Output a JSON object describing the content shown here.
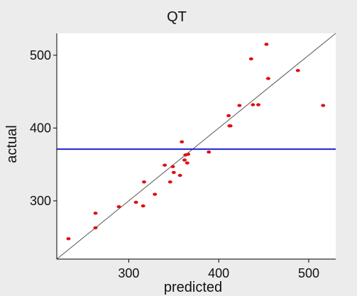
{
  "chart_data": {
    "type": "scatter",
    "title": "QT",
    "xlabel": "predicted",
    "ylabel": "actual",
    "xlim": [
      220,
      530
    ],
    "ylim": [
      220,
      530
    ],
    "xticks": [
      300,
      400,
      500
    ],
    "yticks": [
      300,
      400,
      500
    ],
    "grid": false,
    "reference_lines": [
      {
        "kind": "identity",
        "equation": "y = x",
        "color": "#555555"
      },
      {
        "kind": "horizontal",
        "y": 371,
        "color": "#1f1fd0"
      }
    ],
    "series": [
      {
        "color": "#e01010",
        "points": [
          [
            233,
            248
          ],
          [
            263,
            283
          ],
          [
            263,
            263
          ],
          [
            289,
            292
          ],
          [
            308,
            298
          ],
          [
            316,
            293
          ],
          [
            317,
            326
          ],
          [
            329,
            309
          ],
          [
            340,
            349
          ],
          [
            346,
            326
          ],
          [
            349,
            347
          ],
          [
            350,
            339
          ],
          [
            357,
            335
          ],
          [
            359,
            381
          ],
          [
            362,
            356
          ],
          [
            363,
            363
          ],
          [
            365,
            352
          ],
          [
            366,
            364
          ],
          [
            389,
            367
          ],
          [
            411,
            417
          ],
          [
            412,
            403
          ],
          [
            413,
            403
          ],
          [
            423,
            431
          ],
          [
            436,
            495
          ],
          [
            438,
            432
          ],
          [
            444,
            432
          ],
          [
            453,
            515
          ],
          [
            455,
            468
          ],
          [
            488,
            479
          ],
          [
            516,
            431
          ]
        ]
      }
    ]
  }
}
